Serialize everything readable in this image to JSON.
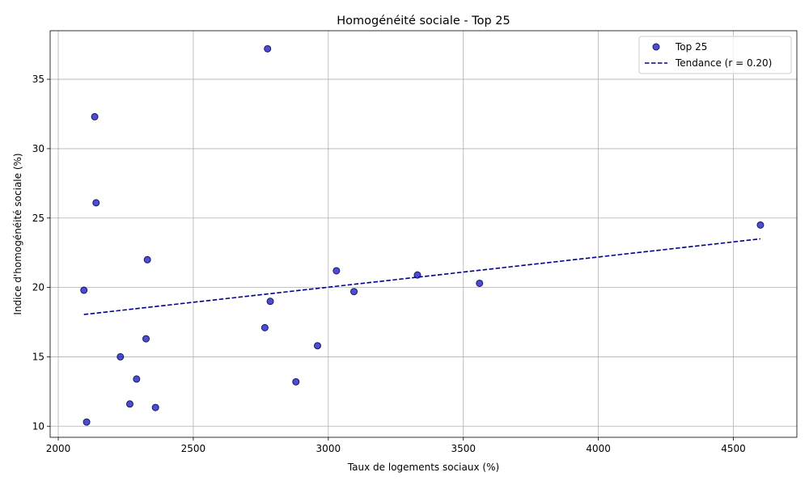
{
  "chart_data": {
    "type": "scatter",
    "title": "Homogénéité sociale - Top 25",
    "xlabel": "Taux de logements sociaux (%)",
    "ylabel": "Indice d'homogénéité sociale (%)",
    "xlim": [
      1970,
      4735
    ],
    "ylim": [
      9.2,
      38.5
    ],
    "xticks": [
      2000,
      2500,
      3000,
      3500,
      4000,
      4500
    ],
    "yticks": [
      10,
      15,
      20,
      25,
      30,
      35
    ],
    "grid": true,
    "legend_position": "top-right",
    "series": [
      {
        "name": "Top 25",
        "kind": "scatter",
        "color": "#0000cc",
        "edge_color": "#1a1a4d",
        "points": [
          {
            "x": 2775,
            "y": 37.2
          },
          {
            "x": 2135,
            "y": 32.3
          },
          {
            "x": 2140,
            "y": 26.1
          },
          {
            "x": 4600,
            "y": 24.5
          },
          {
            "x": 2330,
            "y": 22.0
          },
          {
            "x": 3030,
            "y": 21.2
          },
          {
            "x": 3330,
            "y": 20.9
          },
          {
            "x": 3560,
            "y": 20.3
          },
          {
            "x": 2095,
            "y": 19.8
          },
          {
            "x": 3095,
            "y": 19.7
          },
          {
            "x": 2785,
            "y": 19.0
          },
          {
            "x": 2765,
            "y": 17.1
          },
          {
            "x": 2325,
            "y": 16.3
          },
          {
            "x": 2960,
            "y": 15.8
          },
          {
            "x": 2230,
            "y": 15.0
          },
          {
            "x": 2290,
            "y": 13.4
          },
          {
            "x": 2880,
            "y": 13.2
          },
          {
            "x": 2265,
            "y": 11.6
          },
          {
            "x": 2360,
            "y": 11.35
          },
          {
            "x": 2105,
            "y": 10.3
          }
        ]
      },
      {
        "name": "Tendance (r = 0.20)",
        "kind": "line",
        "style": "dashed",
        "color": "#00008b",
        "points": [
          {
            "x": 2095,
            "y": 18.05
          },
          {
            "x": 4600,
            "y": 23.5
          }
        ]
      }
    ]
  }
}
